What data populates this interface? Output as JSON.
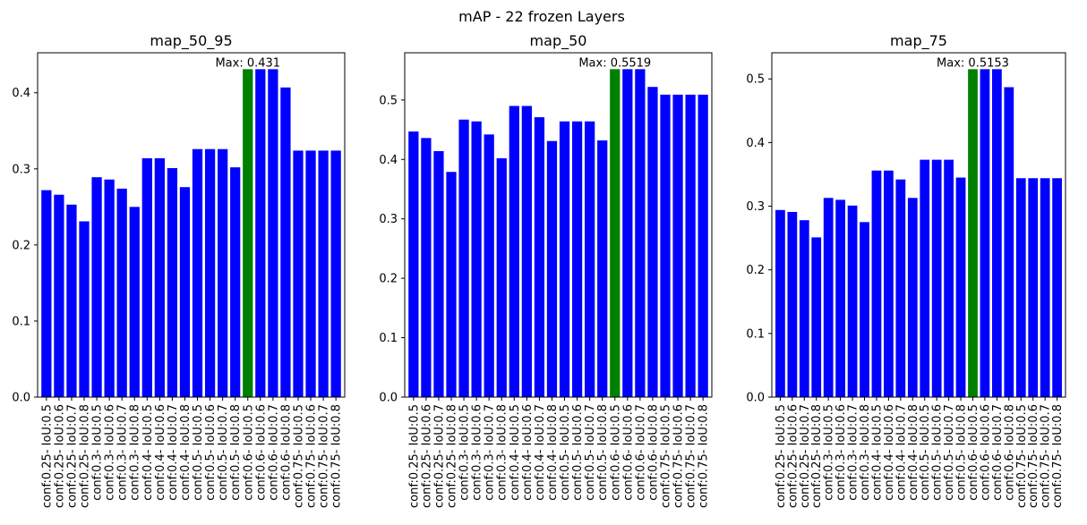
{
  "figure": {
    "suptitle": "mAP - 22 frozen Layers"
  },
  "chart_data": [
    {
      "type": "bar",
      "title": "map_50_95",
      "xlabel": "",
      "ylabel": "",
      "categories": [
        "conf:0.25- IoU:0.5",
        "conf:0.25- IoU:0.6",
        "conf:0.25- IoU:0.7",
        "conf:0.25- IoU:0.8",
        "conf:0.3- IoU:0.5",
        "conf:0.3- IoU:0.6",
        "conf:0.3- IoU:0.7",
        "conf:0.3- IoU:0.8",
        "conf:0.4- IoU:0.5",
        "conf:0.4- IoU:0.6",
        "conf:0.4- IoU:0.7",
        "conf:0.4- IoU:0.8",
        "conf:0.5- IoU:0.5",
        "conf:0.5- IoU:0.6",
        "conf:0.5- IoU:0.7",
        "conf:0.5- IoU:0.8",
        "conf:0.6- IoU:0.5",
        "conf:0.6- IoU:0.6",
        "conf:0.6- IoU:0.7",
        "conf:0.6- IoU:0.8",
        "conf:0.75- IoU:0.5",
        "conf:0.75- IoU:0.6",
        "conf:0.75- IoU:0.7",
        "conf:0.75- IoU:0.8"
      ],
      "values": [
        0.272,
        0.266,
        0.253,
        0.231,
        0.289,
        0.286,
        0.274,
        0.25,
        0.314,
        0.314,
        0.301,
        0.276,
        0.326,
        0.326,
        0.326,
        0.302,
        0.431,
        0.431,
        0.431,
        0.407,
        0.324,
        0.324,
        0.324,
        0.324
      ],
      "highlight_index": 16,
      "annotation": "Max: 0.431",
      "ylim": [
        0,
        0.4526
      ],
      "yticks": [
        0.0,
        0.1,
        0.2,
        0.3,
        0.4
      ],
      "ytick_labels": [
        "0.0",
        "0.1",
        "0.2",
        "0.3",
        "0.4"
      ],
      "colors": {
        "bar": "#0000ff",
        "highlight": "#008000"
      },
      "grid": false
    },
    {
      "type": "bar",
      "title": "map_50",
      "xlabel": "",
      "ylabel": "",
      "categories": [
        "conf:0.25- IoU:0.5",
        "conf:0.25- IoU:0.6",
        "conf:0.25- IoU:0.7",
        "conf:0.25- IoU:0.8",
        "conf:0.3- IoU:0.5",
        "conf:0.3- IoU:0.6",
        "conf:0.3- IoU:0.7",
        "conf:0.3- IoU:0.8",
        "conf:0.4- IoU:0.5",
        "conf:0.4- IoU:0.6",
        "conf:0.4- IoU:0.7",
        "conf:0.4- IoU:0.8",
        "conf:0.5- IoU:0.5",
        "conf:0.5- IoU:0.6",
        "conf:0.5- IoU:0.7",
        "conf:0.5- IoU:0.8",
        "conf:0.6- IoU:0.5",
        "conf:0.6- IoU:0.6",
        "conf:0.6- IoU:0.7",
        "conf:0.6- IoU:0.8",
        "conf:0.75- IoU:0.5",
        "conf:0.75- IoU:0.6",
        "conf:0.75- IoU:0.7",
        "conf:0.75- IoU:0.8"
      ],
      "values": [
        0.447,
        0.436,
        0.414,
        0.379,
        0.467,
        0.464,
        0.442,
        0.402,
        0.49,
        0.49,
        0.471,
        0.431,
        0.464,
        0.464,
        0.464,
        0.432,
        0.5519,
        0.5519,
        0.5519,
        0.522,
        0.509,
        0.509,
        0.509,
        0.509
      ],
      "highlight_index": 16,
      "annotation": "Max: 0.5519",
      "ylim": [
        0,
        0.5795
      ],
      "yticks": [
        0.0,
        0.1,
        0.2,
        0.3,
        0.4,
        0.5
      ],
      "ytick_labels": [
        "0.0",
        "0.1",
        "0.2",
        "0.3",
        "0.4",
        "0.5"
      ],
      "colors": {
        "bar": "#0000ff",
        "highlight": "#008000"
      },
      "grid": false
    },
    {
      "type": "bar",
      "title": "map_75",
      "xlabel": "",
      "ylabel": "",
      "categories": [
        "conf:0.25- IoU:0.5",
        "conf:0.25- IoU:0.6",
        "conf:0.25- IoU:0.7",
        "conf:0.25- IoU:0.8",
        "conf:0.3- IoU:0.5",
        "conf:0.3- IoU:0.6",
        "conf:0.3- IoU:0.7",
        "conf:0.3- IoU:0.8",
        "conf:0.4- IoU:0.5",
        "conf:0.4- IoU:0.6",
        "conf:0.4- IoU:0.7",
        "conf:0.4- IoU:0.8",
        "conf:0.5- IoU:0.5",
        "conf:0.5- IoU:0.6",
        "conf:0.5- IoU:0.7",
        "conf:0.5- IoU:0.8",
        "conf:0.6- IoU:0.5",
        "conf:0.6- IoU:0.6",
        "conf:0.6- IoU:0.7",
        "conf:0.6- IoU:0.8",
        "conf:0.75- IoU:0.5",
        "conf:0.75- IoU:0.6",
        "conf:0.75- IoU:0.7",
        "conf:0.75- IoU:0.8"
      ],
      "values": [
        0.294,
        0.291,
        0.278,
        0.251,
        0.313,
        0.31,
        0.301,
        0.275,
        0.356,
        0.356,
        0.342,
        0.313,
        0.373,
        0.373,
        0.373,
        0.345,
        0.5153,
        0.5153,
        0.5153,
        0.487,
        0.344,
        0.344,
        0.344,
        0.344
      ],
      "highlight_index": 16,
      "annotation": "Max: 0.5153",
      "ylim": [
        0,
        0.5411
      ],
      "yticks": [
        0.0,
        0.1,
        0.2,
        0.3,
        0.4,
        0.5
      ],
      "ytick_labels": [
        "0.0",
        "0.1",
        "0.2",
        "0.3",
        "0.4",
        "0.5"
      ],
      "colors": {
        "bar": "#0000ff",
        "highlight": "#008000"
      },
      "grid": false
    }
  ]
}
